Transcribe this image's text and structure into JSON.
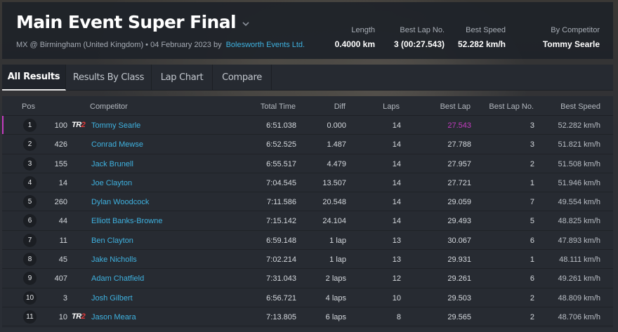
{
  "header": {
    "title": "Main Event Super Final",
    "subtitle": "MX @ Birmingham (United Kingdom) • 04 February 2023 by",
    "organizer": "Bolesworth Events Ltd.",
    "stats": {
      "length_label": "Length",
      "length_value": "0.4000 km",
      "bestlap_label": "Best Lap No.",
      "bestlap_value": "3 (00:27.543)",
      "bestspeed_label": "Best Speed",
      "bestspeed_value": "52.282 km/h",
      "by_label": "By Competitor",
      "by_value": "Tommy Searle"
    }
  },
  "tabs": [
    "All Results",
    "Results By Class",
    "Lap Chart",
    "Compare"
  ],
  "table": {
    "columns": {
      "pos": "Pos",
      "competitor": "Competitor",
      "total": "Total Time",
      "diff": "Diff",
      "laps": "Laps",
      "bestlap": "Best Lap",
      "bestlapno": "Best Lap No.",
      "bestspeed": "Best Speed"
    },
    "rows": [
      {
        "pos": "1",
        "num": "100",
        "tr2": true,
        "name": "Tommy Searle",
        "total": "6:51.038",
        "diff": "0.000",
        "laps": "14",
        "bestlap": "27.543",
        "bestlapno": "3",
        "speed": "52.282 km/h"
      },
      {
        "pos": "2",
        "num": "426",
        "tr2": false,
        "name": "Conrad Mewse",
        "total": "6:52.525",
        "diff": "1.487",
        "laps": "14",
        "bestlap": "27.788",
        "bestlapno": "3",
        "speed": "51.821 km/h"
      },
      {
        "pos": "3",
        "num": "155",
        "tr2": false,
        "name": "Jack Brunell",
        "total": "6:55.517",
        "diff": "4.479",
        "laps": "14",
        "bestlap": "27.957",
        "bestlapno": "2",
        "speed": "51.508 km/h"
      },
      {
        "pos": "4",
        "num": "14",
        "tr2": false,
        "name": "Joe Clayton",
        "total": "7:04.545",
        "diff": "13.507",
        "laps": "14",
        "bestlap": "27.721",
        "bestlapno": "1",
        "speed": "51.946 km/h"
      },
      {
        "pos": "5",
        "num": "260",
        "tr2": false,
        "name": "Dylan Woodcock",
        "total": "7:11.586",
        "diff": "20.548",
        "laps": "14",
        "bestlap": "29.059",
        "bestlapno": "7",
        "speed": "49.554 km/h"
      },
      {
        "pos": "6",
        "num": "44",
        "tr2": false,
        "name": "Elliott Banks-Browne",
        "total": "7:15.142",
        "diff": "24.104",
        "laps": "14",
        "bestlap": "29.493",
        "bestlapno": "5",
        "speed": "48.825 km/h"
      },
      {
        "pos": "7",
        "num": "11",
        "tr2": false,
        "name": "Ben Clayton",
        "total": "6:59.148",
        "diff": "1 lap",
        "laps": "13",
        "bestlap": "30.067",
        "bestlapno": "6",
        "speed": "47.893 km/h"
      },
      {
        "pos": "8",
        "num": "45",
        "tr2": false,
        "name": "Jake Nicholls",
        "total": "7:02.214",
        "diff": "1 lap",
        "laps": "13",
        "bestlap": "29.931",
        "bestlapno": "1",
        "speed": "48.111 km/h"
      },
      {
        "pos": "9",
        "num": "407",
        "tr2": false,
        "name": "Adam Chatfield",
        "total": "7:31.043",
        "diff": "2 laps",
        "laps": "12",
        "bestlap": "29.261",
        "bestlapno": "6",
        "speed": "49.261 km/h"
      },
      {
        "pos": "10",
        "num": "3",
        "tr2": false,
        "name": "Josh Gilbert",
        "total": "6:56.721",
        "diff": "4 laps",
        "laps": "10",
        "bestlap": "29.503",
        "bestlapno": "2",
        "speed": "48.809 km/h"
      },
      {
        "pos": "11",
        "num": "10",
        "tr2": true,
        "name": "Jason Meara",
        "total": "7:13.805",
        "diff": "6 laps",
        "laps": "8",
        "bestlap": "29.565",
        "bestlapno": "2",
        "speed": "48.706 km/h"
      }
    ]
  },
  "badge": {
    "tr": "TR",
    "two": "2"
  },
  "colors": {
    "accent_link": "#3fb2e0",
    "best_lap_highlight": "#c33cbf",
    "tr2_red": "#e03a3a"
  }
}
